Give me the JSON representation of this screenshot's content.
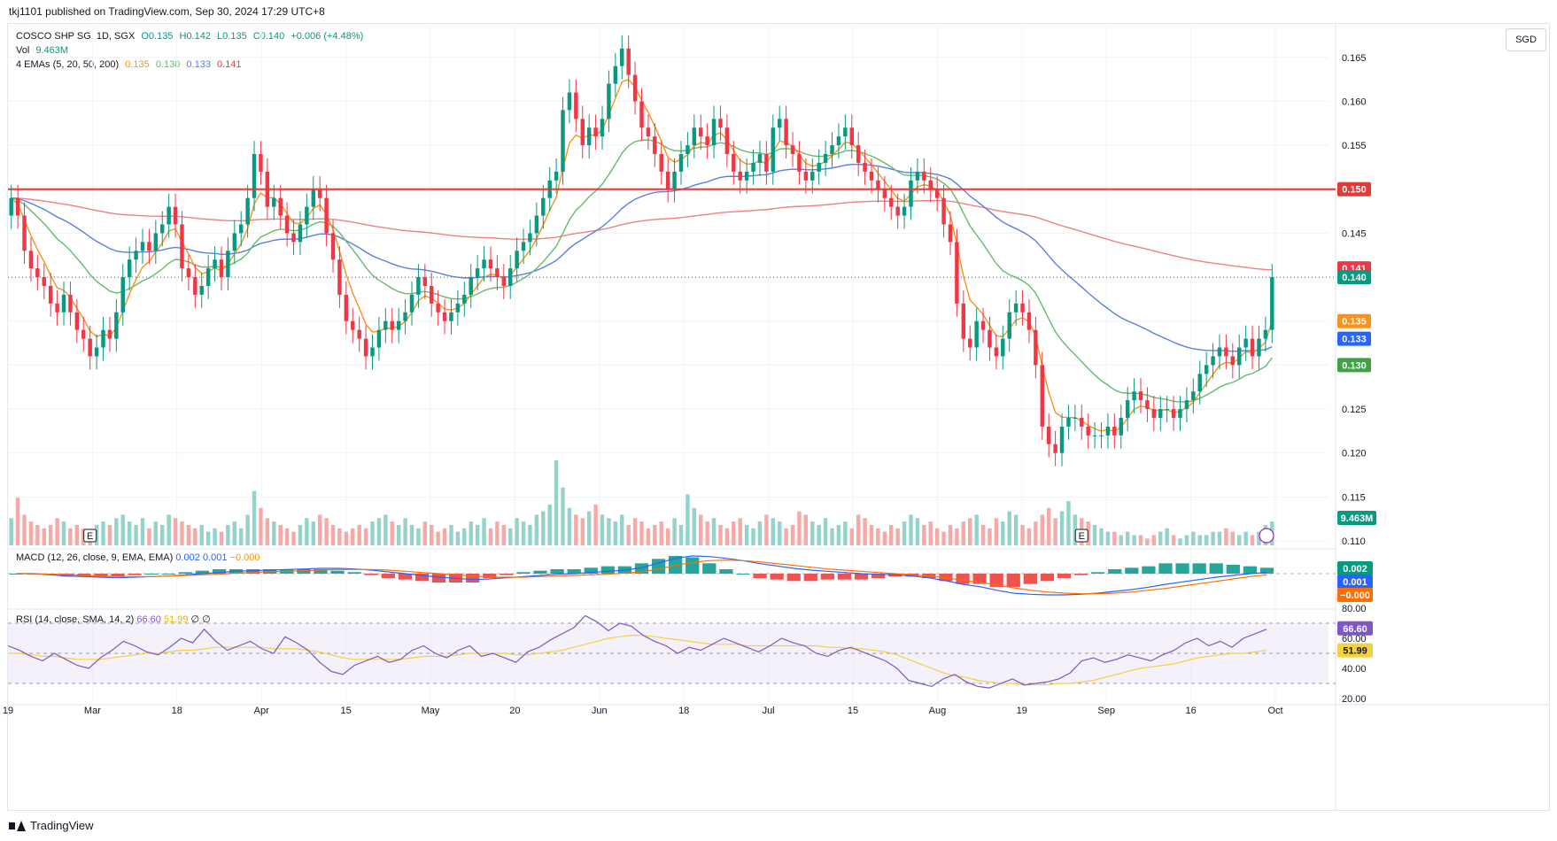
{
  "header": {
    "publisher": "tkj1101 published on TradingView.com, Sep 30, 2024 17:29 UTC+8"
  },
  "legend": {
    "symbol": "COSCO SHP SG, 1D, SGX",
    "open": "O0.135",
    "high": "H0.142",
    "low": "L0.135",
    "close": "C0.140",
    "change": "+0.006 (+4.48%)",
    "vol_label": "Vol",
    "vol_value": "9.463M",
    "ema_label": "4 EMAs (5, 20, 50, 200)",
    "ema5": "0.135",
    "ema20": "0.130",
    "ema50": "0.133",
    "ema200": "0.141"
  },
  "currency": "SGD",
  "macd_legend": {
    "label": "MACD (12, 26, close, 9, EMA, EMA)",
    "macd": "0.002",
    "signal": "0.001",
    "hist": "−0.000"
  },
  "rsi_legend": {
    "label": "RSI (14, close, SMA, 14, 2)",
    "rsi": "66.60",
    "sma": "51.99",
    "extra": "∅ ∅"
  },
  "footer": {
    "brand": "TradingView"
  },
  "colors": {
    "up": "#089981",
    "down": "#f23645",
    "ema5": "#f7931a",
    "ema20": "#66bb6a",
    "ema50": "#5b7fe0",
    "ema200": "#f08080",
    "resistance": "#e53935",
    "rsi": "#7e57c2",
    "rsi_sma": "#f5d142",
    "grid": "#f0f3fa"
  },
  "chart_data": {
    "type": "candlestick",
    "price_axis": {
      "ticks": [
        "0.165",
        "0.160",
        "0.155",
        "0.150",
        "0.145",
        "0.140",
        "0.135",
        "0.130",
        "0.125",
        "0.120",
        "0.115",
        "0.110"
      ],
      "ylim": [
        0.1095,
        0.1685
      ]
    },
    "x_axis": {
      "ticks": [
        "19",
        "Mar",
        "18",
        "Apr",
        "15",
        "May",
        "20",
        "Jun",
        "18",
        "Jul",
        "15",
        "Aug",
        "19",
        "Sep",
        "16",
        "Oct"
      ]
    },
    "horizontal_line": {
      "value": 0.15,
      "label": "0.150"
    },
    "price_labels": [
      {
        "series": "ema200",
        "text": "0.141"
      },
      {
        "series": "last",
        "text": "0.140"
      },
      {
        "series": "ema5",
        "text": "0.135"
      },
      {
        "series": "ema50",
        "text": "0.133"
      },
      {
        "series": "ema20",
        "text": "0.130"
      },
      {
        "series": "volume",
        "text": "9.463M"
      }
    ],
    "earnings_markers": [
      "E",
      "E"
    ],
    "close": [
      0.149,
      0.147,
      0.143,
      0.141,
      0.14,
      0.139,
      0.137,
      0.136,
      0.138,
      0.136,
      0.134,
      0.133,
      0.131,
      0.132,
      0.134,
      0.133,
      0.136,
      0.14,
      0.142,
      0.143,
      0.144,
      0.143,
      0.145,
      0.146,
      0.148,
      0.146,
      0.141,
      0.14,
      0.138,
      0.139,
      0.141,
      0.142,
      0.14,
      0.143,
      0.145,
      0.146,
      0.149,
      0.154,
      0.152,
      0.148,
      0.149,
      0.147,
      0.145,
      0.144,
      0.146,
      0.148,
      0.15,
      0.149,
      0.145,
      0.142,
      0.138,
      0.135,
      0.134,
      0.133,
      0.131,
      0.132,
      0.134,
      0.135,
      0.134,
      0.135,
      0.136,
      0.138,
      0.14,
      0.139,
      0.137,
      0.136,
      0.135,
      0.136,
      0.137,
      0.138,
      0.14,
      0.141,
      0.142,
      0.141,
      0.14,
      0.139,
      0.141,
      0.143,
      0.144,
      0.145,
      0.147,
      0.149,
      0.151,
      0.152,
      0.159,
      0.161,
      0.158,
      0.155,
      0.157,
      0.156,
      0.158,
      0.162,
      0.164,
      0.166,
      0.163,
      0.16,
      0.157,
      0.156,
      0.154,
      0.152,
      0.15,
      0.152,
      0.154,
      0.155,
      0.157,
      0.156,
      0.155,
      0.158,
      0.157,
      0.154,
      0.152,
      0.151,
      0.152,
      0.153,
      0.154,
      0.152,
      0.157,
      0.158,
      0.155,
      0.154,
      0.152,
      0.151,
      0.152,
      0.153,
      0.154,
      0.155,
      0.156,
      0.157,
      0.155,
      0.153,
      0.152,
      0.151,
      0.15,
      0.149,
      0.148,
      0.147,
      0.148,
      0.151,
      0.152,
      0.151,
      0.15,
      0.149,
      0.146,
      0.144,
      0.137,
      0.133,
      0.132,
      0.135,
      0.134,
      0.132,
      0.131,
      0.133,
      0.136,
      0.137,
      0.136,
      0.134,
      0.13,
      0.123,
      0.121,
      0.12,
      0.123,
      0.124,
      0.124,
      0.123,
      0.122,
      0.122,
      0.122,
      0.123,
      0.122,
      0.124,
      0.126,
      0.127,
      0.126,
      0.125,
      0.124,
      0.125,
      0.125,
      0.124,
      0.125,
      0.126,
      0.127,
      0.129,
      0.13,
      0.131,
      0.132,
      0.131,
      0.13,
      0.132,
      0.133,
      0.131,
      0.133,
      0.134,
      0.14
    ],
    "volume_unit": "M",
    "volume": [
      8,
      14,
      9,
      7,
      6,
      5,
      6,
      8,
      7,
      5,
      6,
      5,
      4,
      6,
      7,
      6,
      8,
      9,
      7,
      6,
      8,
      5,
      7,
      6,
      9,
      8,
      7,
      6,
      5,
      6,
      4,
      5,
      4,
      6,
      7,
      5,
      9,
      16,
      11,
      8,
      7,
      6,
      5,
      4,
      6,
      8,
      7,
      9,
      8,
      6,
      5,
      4,
      5,
      6,
      5,
      7,
      8,
      9,
      7,
      6,
      8,
      6,
      5,
      7,
      6,
      4,
      5,
      6,
      4,
      5,
      7,
      6,
      8,
      5,
      7,
      6,
      5,
      8,
      7,
      6,
      9,
      10,
      12,
      25,
      17,
      11,
      9,
      8,
      10,
      12,
      9,
      8,
      7,
      9,
      6,
      8,
      7,
      5,
      6,
      7,
      5,
      8,
      6,
      15,
      11,
      9,
      7,
      8,
      6,
      5,
      7,
      8,
      6,
      5,
      7,
      9,
      8,
      7,
      5,
      6,
      10,
      9,
      7,
      6,
      8,
      5,
      6,
      7,
      5,
      9,
      8,
      6,
      5,
      4,
      6,
      5,
      7,
      9,
      8,
      6,
      7,
      5,
      4,
      6,
      5,
      7,
      8,
      9,
      6,
      5,
      8,
      7,
      10,
      9,
      6,
      5,
      7,
      9,
      11,
      8,
      10,
      13,
      9,
      8,
      7,
      6,
      5,
      4,
      4,
      3,
      4,
      3,
      3,
      2,
      3,
      4,
      5,
      3,
      2,
      3,
      4,
      3,
      3,
      4,
      4,
      5,
      4,
      3,
      4,
      3,
      4,
      6,
      7
    ],
    "macd": {
      "axis_labels": [
        "0.002",
        "0.001",
        "−0.000"
      ],
      "macd": [
        0.0,
        0.0,
        -0.0002,
        -0.0004,
        -0.0005,
        -0.0006,
        -0.0007,
        -0.0006,
        -0.0005,
        -0.0004,
        -0.0002,
        0.0,
        0.0002,
        0.0004,
        0.0005,
        0.0006,
        0.0007,
        0.0008,
        0.0009,
        0.0009,
        0.0008,
        0.0006,
        0.0003,
        0.0,
        -0.0003,
        -0.0006,
        -0.0008,
        -0.001,
        -0.0009,
        -0.0007,
        -0.0005,
        -0.0003,
        -0.0001,
        0.0,
        0.0002,
        0.0004,
        0.0006,
        0.001,
        0.0018,
        0.0026,
        0.003,
        0.0029,
        0.0026,
        0.0022,
        0.0017,
        0.0013,
        0.0009,
        0.0006,
        0.0004,
        0.0002,
        0.0,
        -0.0001,
        -0.0002,
        -0.0004,
        -0.0007,
        -0.0012,
        -0.0018,
        -0.0022,
        -0.0028,
        -0.0033,
        -0.0035,
        -0.0036,
        -0.0036,
        -0.0035,
        -0.0033,
        -0.003,
        -0.0027,
        -0.0023,
        -0.0018,
        -0.0014,
        -0.001,
        -0.0006,
        -0.0003,
        0.0,
        0.0002
      ],
      "signal": [
        0.0,
        0.0,
        -0.0001,
        -0.0002,
        -0.0003,
        -0.0004,
        -0.0005,
        -0.0005,
        -0.0005,
        -0.0004,
        -0.0003,
        -0.0002,
        -0.0001,
        0.0001,
        0.0002,
        0.0003,
        0.0004,
        0.0005,
        0.0006,
        0.0007,
        0.0007,
        0.0007,
        0.0006,
        0.0004,
        0.0002,
        0.0,
        -0.0002,
        -0.0004,
        -0.0006,
        -0.0006,
        -0.0006,
        -0.0005,
        -0.0004,
        -0.0003,
        -0.0002,
        -0.0001,
        0.0001,
        0.0003,
        0.0008,
        0.0014,
        0.0019,
        0.0022,
        0.0023,
        0.0022,
        0.002,
        0.0017,
        0.0014,
        0.0011,
        0.0008,
        0.0006,
        0.0004,
        0.0002,
        0.0,
        -0.0002,
        -0.0004,
        -0.0007,
        -0.0011,
        -0.0015,
        -0.0019,
        -0.0024,
        -0.0028,
        -0.0031,
        -0.0033,
        -0.0034,
        -0.0034,
        -0.0033,
        -0.0031,
        -0.0028,
        -0.0025,
        -0.0021,
        -0.0017,
        -0.0013,
        -0.0009,
        -0.0005,
        -0.0002
      ]
    },
    "rsi": {
      "axis_labels": [
        "80.00",
        "66.60",
        "60.00",
        "51.99",
        "40.00",
        "20.00"
      ],
      "bands": [
        70,
        50,
        30
      ],
      "rsi": [
        55,
        52,
        48,
        45,
        50,
        46,
        42,
        40,
        47,
        52,
        58,
        55,
        51,
        49,
        54,
        60,
        57,
        66,
        58,
        52,
        55,
        58,
        53,
        50,
        61,
        57,
        52,
        44,
        38,
        36,
        42,
        45,
        48,
        44,
        46,
        52,
        55,
        50,
        47,
        52,
        55,
        48,
        50,
        47,
        44,
        51,
        54,
        59,
        63,
        67,
        75,
        71,
        65,
        70,
        68,
        62,
        58,
        55,
        50,
        54,
        52,
        56,
        60,
        57,
        54,
        51,
        55,
        60,
        57,
        55,
        50,
        48,
        52,
        54,
        51,
        48,
        45,
        40,
        32,
        30,
        28,
        33,
        36,
        31,
        28,
        27,
        30,
        33,
        29,
        30,
        31,
        33,
        37,
        45,
        47,
        44,
        46,
        49,
        47,
        45,
        49,
        52,
        57,
        60,
        55,
        58,
        54,
        60,
        63,
        66
      ],
      "sma": [
        50,
        50,
        49,
        48,
        48,
        47,
        46,
        46,
        46,
        47,
        48,
        49,
        50,
        50,
        51,
        52,
        52,
        53,
        54,
        54,
        54,
        54,
        54,
        53,
        53,
        53,
        52,
        51,
        49,
        47,
        46,
        46,
        46,
        46,
        46,
        47,
        48,
        48,
        48,
        49,
        50,
        50,
        50,
        50,
        49,
        49,
        50,
        51,
        52,
        54,
        56,
        58,
        60,
        61,
        62,
        62,
        61,
        60,
        59,
        58,
        57,
        56,
        56,
        56,
        55,
        55,
        55,
        55,
        55,
        55,
        55,
        54,
        54,
        53,
        53,
        52,
        51,
        49,
        46,
        43,
        40,
        37,
        35,
        34,
        32,
        31,
        30,
        30,
        29,
        29,
        29,
        30,
        30,
        31,
        32,
        34,
        36,
        38,
        40,
        41,
        42,
        43,
        45,
        47,
        48,
        49,
        50,
        50,
        51,
        52
      ]
    }
  }
}
